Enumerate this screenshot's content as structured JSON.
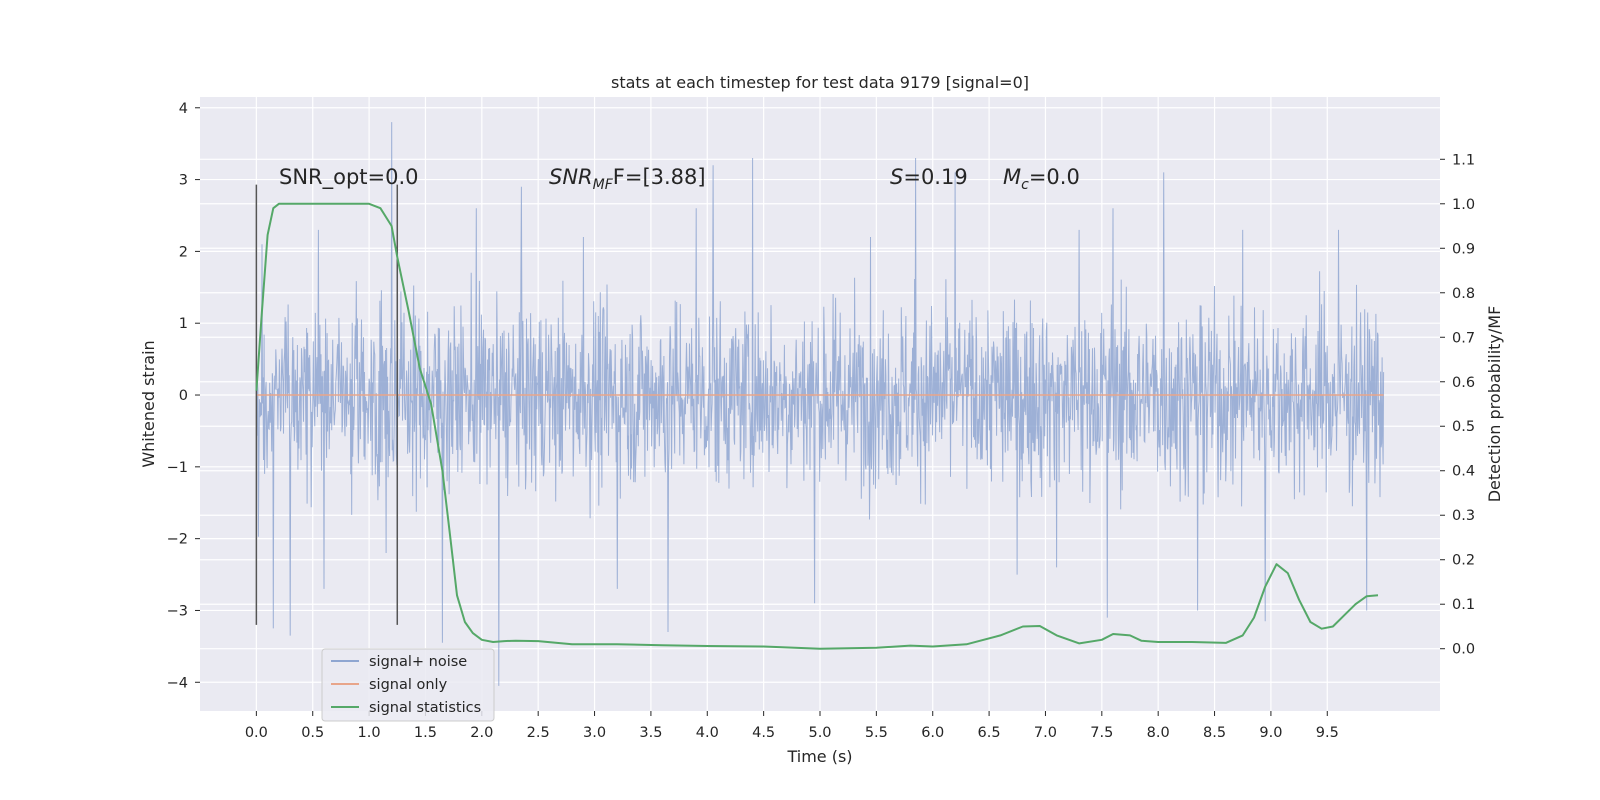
{
  "chart_data": {
    "type": "line",
    "title": "stats at each timestep for test data 9179 [signal=0]",
    "xlabel": "Time (s)",
    "ylabel": "Whitened strain",
    "y2label": "Detection probability/MF",
    "xlim": [
      -0.5,
      10.5
    ],
    "ylim": [
      -4.4,
      4.15
    ],
    "y2lim": [
      -0.14,
      1.24
    ],
    "x_ticks": [
      "0.0",
      "0.5",
      "1.0",
      "1.5",
      "2.0",
      "2.5",
      "3.0",
      "3.5",
      "4.0",
      "4.5",
      "5.0",
      "5.5",
      "6.0",
      "6.5",
      "7.0",
      "7.5",
      "8.0",
      "8.5",
      "9.0",
      "9.5"
    ],
    "y_ticks": [
      "4",
      "3",
      "2",
      "1",
      "0",
      "−1",
      "−2",
      "−3",
      "−4"
    ],
    "y2_ticks": [
      "1.1",
      "1.0",
      "0.9",
      "0.8",
      "0.7",
      "0.6",
      "0.5",
      "0.4",
      "0.3",
      "0.2",
      "0.1",
      "0.0"
    ],
    "grid": true,
    "legend_position": "lower-left",
    "annotations": {
      "snr_opt": "SNR_opt=0.0",
      "snr_mf_var": "SNR",
      "snr_mf_sub": "MF",
      "snr_mf_value": "F=[3.88]",
      "s_var": "S",
      "s_value": "=0.19",
      "mc_var": "M",
      "mc_sub": "c",
      "mc_value": "=0.0"
    },
    "vertical_lines": [
      0.0,
      1.25
    ],
    "series": [
      {
        "name": "signal+ noise",
        "color": "#8fa6d1",
        "axis": "left",
        "x_range": [
          0.0,
          10.0
        ],
        "typical_std": 0.9,
        "spikes": [
          [
            0.05,
            2.1
          ],
          [
            0.15,
            -3.25
          ],
          [
            0.3,
            -3.35
          ],
          [
            0.55,
            2.3
          ],
          [
            0.6,
            -2.7
          ],
          [
            1.15,
            -2.2
          ],
          [
            1.2,
            3.8
          ],
          [
            1.65,
            -3.45
          ],
          [
            1.95,
            2.6
          ],
          [
            2.15,
            -4.05
          ],
          [
            2.35,
            2.9
          ],
          [
            2.9,
            2.2
          ],
          [
            3.2,
            -2.7
          ],
          [
            3.65,
            -3.3
          ],
          [
            3.9,
            2.6
          ],
          [
            4.05,
            3.2
          ],
          [
            4.4,
            3.3
          ],
          [
            4.95,
            -2.9
          ],
          [
            5.45,
            2.2
          ],
          [
            5.85,
            3.3
          ],
          [
            6.2,
            3.1
          ],
          [
            6.75,
            -2.5
          ],
          [
            7.1,
            -2.4
          ],
          [
            7.3,
            2.3
          ],
          [
            7.55,
            -3.1
          ],
          [
            7.6,
            2.6
          ],
          [
            8.05,
            3.1
          ],
          [
            8.35,
            -3.0
          ],
          [
            8.75,
            2.3
          ],
          [
            8.95,
            -3.15
          ],
          [
            9.6,
            2.3
          ],
          [
            9.85,
            -3.0
          ]
        ]
      },
      {
        "name": "signal only",
        "color": "#e8a58a",
        "axis": "left",
        "x": [
          0.0,
          10.0
        ],
        "y": [
          0.0,
          0.0
        ]
      },
      {
        "name": "signal statistics",
        "color": "#55a868",
        "axis": "right",
        "x": [
          0.0,
          0.05,
          0.1,
          0.15,
          0.2,
          0.3,
          0.5,
          0.7,
          0.9,
          1.0,
          1.1,
          1.2,
          1.25,
          1.35,
          1.45,
          1.55,
          1.65,
          1.72,
          1.78,
          1.85,
          1.92,
          2.0,
          2.1,
          2.2,
          2.3,
          2.5,
          2.8,
          3.2,
          3.6,
          4.0,
          4.5,
          5.0,
          5.5,
          5.8,
          6.0,
          6.3,
          6.6,
          6.8,
          6.95,
          7.1,
          7.3,
          7.5,
          7.6,
          7.75,
          7.85,
          8.0,
          8.3,
          8.6,
          8.75,
          8.85,
          8.95,
          9.05,
          9.15,
          9.25,
          9.35,
          9.45,
          9.55,
          9.65,
          9.75,
          9.85,
          9.95
        ],
        "y": [
          0.58,
          0.76,
          0.93,
          0.99,
          1.0,
          1.0,
          1.0,
          1.0,
          1.0,
          1.0,
          0.99,
          0.95,
          0.88,
          0.76,
          0.63,
          0.55,
          0.4,
          0.25,
          0.12,
          0.06,
          0.035,
          0.02,
          0.015,
          0.017,
          0.018,
          0.017,
          0.01,
          0.01,
          0.008,
          0.006,
          0.005,
          0.0,
          0.002,
          0.007,
          0.005,
          0.01,
          0.03,
          0.05,
          0.051,
          0.03,
          0.012,
          0.02,
          0.033,
          0.03,
          0.018,
          0.015,
          0.015,
          0.013,
          0.03,
          0.07,
          0.14,
          0.19,
          0.17,
          0.11,
          0.06,
          0.045,
          0.05,
          0.075,
          0.1,
          0.118,
          0.12
        ]
      }
    ]
  }
}
